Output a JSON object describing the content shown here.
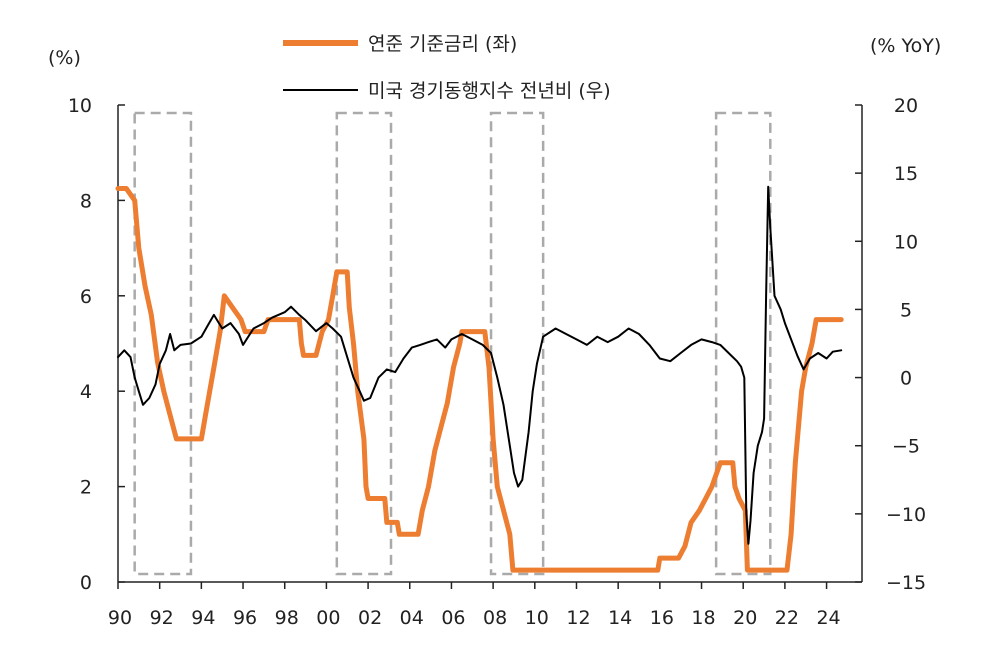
{
  "chart_data": {
    "type": "line",
    "y_left_label": "(%)",
    "y_right_label": "(% YoY)",
    "y_left_range": [
      0,
      10
    ],
    "y_left_ticks": [
      "0",
      "2",
      "4",
      "6",
      "8",
      "10"
    ],
    "y_left_tick_values": [
      0,
      2,
      4,
      6,
      8,
      10
    ],
    "y_right_range": [
      -15,
      20
    ],
    "y_right_ticks": [
      "−15",
      "−10",
      "−5",
      "0",
      "5",
      "10",
      "15",
      "20"
    ],
    "y_right_tick_values": [
      -15,
      -10,
      -5,
      0,
      5,
      10,
      15,
      20
    ],
    "x_range": [
      1990,
      2025.7
    ],
    "x_ticks": [
      "90",
      "92",
      "94",
      "96",
      "98",
      "00",
      "02",
      "04",
      "06",
      "08",
      "10",
      "12",
      "14",
      "16",
      "18",
      "20",
      "22",
      "24"
    ],
    "x_tick_values": [
      1990,
      1992,
      1994,
      1996,
      1998,
      2000,
      2002,
      2004,
      2006,
      2008,
      2010,
      2012,
      2014,
      2016,
      2018,
      2020,
      2022,
      2024
    ],
    "grid": false,
    "legend_position": "top-center",
    "recession_shading": [
      {
        "start": 1990.8,
        "end": 1993.5
      },
      {
        "start": 2000.5,
        "end": 2003.1
      },
      {
        "start": 2007.9,
        "end": 2010.4
      },
      {
        "start": 2018.7,
        "end": 2021.3
      }
    ],
    "series": [
      {
        "name": "연준 기준금리 (좌)",
        "axis": "left",
        "color": "#ed7d31",
        "points": [
          [
            1990.0,
            8.25
          ],
          [
            1990.4,
            8.25
          ],
          [
            1990.8,
            8.0
          ],
          [
            1991.0,
            7.0
          ],
          [
            1991.3,
            6.2
          ],
          [
            1991.6,
            5.6
          ],
          [
            1991.9,
            4.6
          ],
          [
            1992.2,
            4.0
          ],
          [
            1992.5,
            3.5
          ],
          [
            1992.8,
            3.0
          ],
          [
            1993.5,
            3.0
          ],
          [
            1994.0,
            3.0
          ],
          [
            1994.2,
            3.5
          ],
          [
            1994.4,
            4.0
          ],
          [
            1994.6,
            4.5
          ],
          [
            1994.9,
            5.25
          ],
          [
            1995.1,
            6.0
          ],
          [
            1995.5,
            5.75
          ],
          [
            1995.9,
            5.5
          ],
          [
            1996.1,
            5.25
          ],
          [
            1997.0,
            5.25
          ],
          [
            1997.2,
            5.5
          ],
          [
            1998.0,
            5.5
          ],
          [
            1998.7,
            5.5
          ],
          [
            1998.8,
            5.0
          ],
          [
            1998.9,
            4.75
          ],
          [
            1999.5,
            4.75
          ],
          [
            1999.8,
            5.25
          ],
          [
            2000.1,
            5.5
          ],
          [
            2000.3,
            6.0
          ],
          [
            2000.5,
            6.5
          ],
          [
            2001.0,
            6.5
          ],
          [
            2001.1,
            5.75
          ],
          [
            2001.3,
            5.0
          ],
          [
            2001.5,
            4.0
          ],
          [
            2001.8,
            3.0
          ],
          [
            2001.9,
            2.0
          ],
          [
            2002.0,
            1.75
          ],
          [
            2002.8,
            1.75
          ],
          [
            2002.9,
            1.25
          ],
          [
            2003.4,
            1.25
          ],
          [
            2003.5,
            1.0
          ],
          [
            2004.4,
            1.0
          ],
          [
            2004.6,
            1.5
          ],
          [
            2004.9,
            2.0
          ],
          [
            2005.2,
            2.75
          ],
          [
            2005.5,
            3.25
          ],
          [
            2005.8,
            3.75
          ],
          [
            2006.1,
            4.5
          ],
          [
            2006.4,
            5.0
          ],
          [
            2006.5,
            5.25
          ],
          [
            2007.6,
            5.25
          ],
          [
            2007.8,
            4.5
          ],
          [
            2008.0,
            3.0
          ],
          [
            2008.2,
            2.0
          ],
          [
            2008.8,
            1.0
          ],
          [
            2008.95,
            0.25
          ],
          [
            2015.9,
            0.25
          ],
          [
            2016.0,
            0.5
          ],
          [
            2016.9,
            0.5
          ],
          [
            2017.2,
            0.75
          ],
          [
            2017.5,
            1.25
          ],
          [
            2017.9,
            1.5
          ],
          [
            2018.2,
            1.75
          ],
          [
            2018.5,
            2.0
          ],
          [
            2018.7,
            2.25
          ],
          [
            2018.9,
            2.5
          ],
          [
            2019.5,
            2.5
          ],
          [
            2019.6,
            2.0
          ],
          [
            2019.8,
            1.75
          ],
          [
            2020.1,
            1.5
          ],
          [
            2020.2,
            0.25
          ],
          [
            2022.1,
            0.25
          ],
          [
            2022.3,
            1.0
          ],
          [
            2022.5,
            2.5
          ],
          [
            2022.8,
            4.0
          ],
          [
            2023.0,
            4.5
          ],
          [
            2023.3,
            5.0
          ],
          [
            2023.5,
            5.5
          ],
          [
            2024.7,
            5.5
          ]
        ]
      },
      {
        "name": "미국 경기동행지수 전년비 (우)",
        "axis": "right",
        "color": "#000000",
        "points": [
          [
            1990.0,
            1.5
          ],
          [
            1990.3,
            2.0
          ],
          [
            1990.6,
            1.5
          ],
          [
            1990.8,
            0.0
          ],
          [
            1991.0,
            -1.0
          ],
          [
            1991.2,
            -2.0
          ],
          [
            1991.5,
            -1.5
          ],
          [
            1991.8,
            -0.5
          ],
          [
            1992.0,
            1.0
          ],
          [
            1992.3,
            2.0
          ],
          [
            1992.5,
            3.2
          ],
          [
            1992.7,
            2.0
          ],
          [
            1993.0,
            2.4
          ],
          [
            1993.5,
            2.5
          ],
          [
            1994.0,
            3.0
          ],
          [
            1994.3,
            3.8
          ],
          [
            1994.6,
            4.6
          ],
          [
            1995.0,
            3.6
          ],
          [
            1995.4,
            4.0
          ],
          [
            1995.8,
            3.2
          ],
          [
            1996.0,
            2.4
          ],
          [
            1996.5,
            3.6
          ],
          [
            1997.0,
            4.0
          ],
          [
            1997.4,
            4.4
          ],
          [
            1998.0,
            4.8
          ],
          [
            1998.3,
            5.2
          ],
          [
            1998.7,
            4.6
          ],
          [
            1999.0,
            4.2
          ],
          [
            1999.5,
            3.4
          ],
          [
            2000.0,
            4.0
          ],
          [
            2000.3,
            3.6
          ],
          [
            2000.7,
            3.0
          ],
          [
            2001.0,
            1.5
          ],
          [
            2001.3,
            0.0
          ],
          [
            2001.6,
            -1.0
          ],
          [
            2001.8,
            -1.7
          ],
          [
            2002.1,
            -1.5
          ],
          [
            2002.5,
            0.0
          ],
          [
            2002.9,
            0.6
          ],
          [
            2003.3,
            0.4
          ],
          [
            2003.7,
            1.4
          ],
          [
            2004.1,
            2.2
          ],
          [
            2004.5,
            2.4
          ],
          [
            2004.9,
            2.6
          ],
          [
            2005.3,
            2.8
          ],
          [
            2005.7,
            2.2
          ],
          [
            2006.0,
            2.8
          ],
          [
            2006.5,
            3.2
          ],
          [
            2007.0,
            2.8
          ],
          [
            2007.5,
            2.4
          ],
          [
            2007.9,
            1.8
          ],
          [
            2008.2,
            0.0
          ],
          [
            2008.5,
            -2.0
          ],
          [
            2008.8,
            -5.0
          ],
          [
            2009.0,
            -7.0
          ],
          [
            2009.2,
            -8.0
          ],
          [
            2009.4,
            -7.5
          ],
          [
            2009.7,
            -4.0
          ],
          [
            2009.9,
            -1.0
          ],
          [
            2010.1,
            1.0
          ],
          [
            2010.4,
            3.0
          ],
          [
            2011.0,
            3.6
          ],
          [
            2011.5,
            3.2
          ],
          [
            2012.0,
            2.8
          ],
          [
            2012.5,
            2.4
          ],
          [
            2013.0,
            3.0
          ],
          [
            2013.5,
            2.6
          ],
          [
            2014.0,
            3.0
          ],
          [
            2014.5,
            3.6
          ],
          [
            2015.0,
            3.2
          ],
          [
            2015.5,
            2.4
          ],
          [
            2016.0,
            1.4
          ],
          [
            2016.5,
            1.2
          ],
          [
            2017.0,
            1.8
          ],
          [
            2017.5,
            2.4
          ],
          [
            2018.0,
            2.8
          ],
          [
            2018.5,
            2.6
          ],
          [
            2018.9,
            2.4
          ],
          [
            2019.3,
            1.8
          ],
          [
            2019.7,
            1.2
          ],
          [
            2019.9,
            0.8
          ],
          [
            2020.05,
            0.0
          ],
          [
            2020.15,
            -10.0
          ],
          [
            2020.25,
            -12.2
          ],
          [
            2020.35,
            -10.5
          ],
          [
            2020.5,
            -7.0
          ],
          [
            2020.7,
            -5.0
          ],
          [
            2020.9,
            -4.0
          ],
          [
            2021.0,
            -3.0
          ],
          [
            2021.1,
            6.0
          ],
          [
            2021.2,
            14.0
          ],
          [
            2021.3,
            11.0
          ],
          [
            2021.5,
            6.0
          ],
          [
            2021.8,
            5.0
          ],
          [
            2022.0,
            4.0
          ],
          [
            2022.3,
            2.8
          ],
          [
            2022.6,
            1.6
          ],
          [
            2022.9,
            0.6
          ],
          [
            2023.2,
            1.4
          ],
          [
            2023.6,
            1.8
          ],
          [
            2024.0,
            1.4
          ],
          [
            2024.3,
            1.9
          ],
          [
            2024.7,
            2.0
          ]
        ]
      }
    ]
  }
}
